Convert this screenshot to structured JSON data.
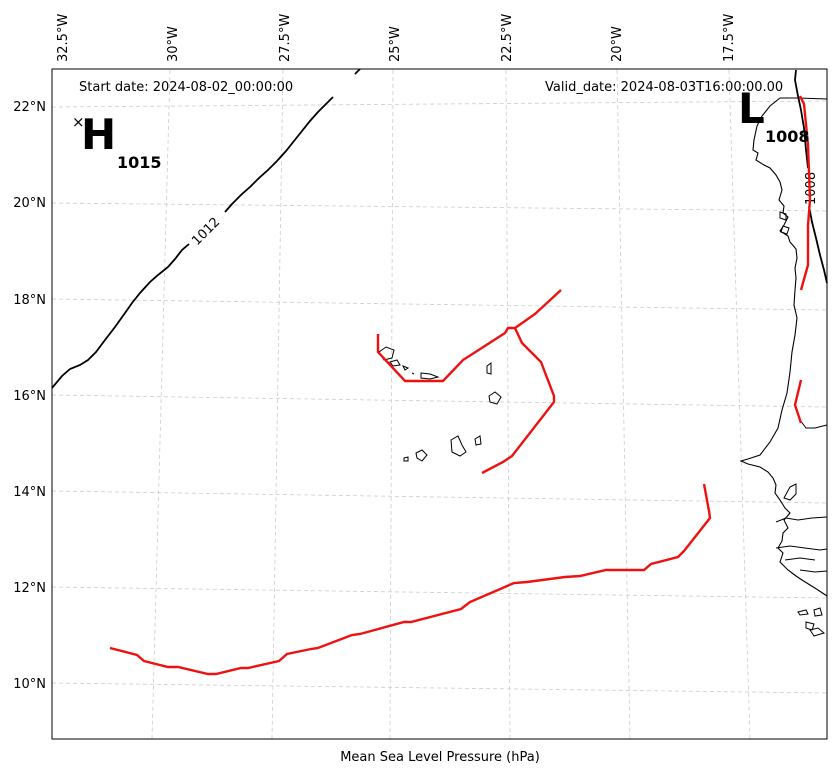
{
  "map": {
    "start_date": "Start date: 2024-08-02_00:00:00",
    "valid_date": "Valid_date: 2024-08-03T16:00:00.00",
    "xlabel": "Mean Sea Level Pressure (hPa)",
    "lon_ticks": [
      "32.5°W",
      "30°W",
      "27.5°W",
      "25°W",
      "22.5°W",
      "20°W",
      "17.5°W"
    ],
    "lat_ticks": [
      "22°N",
      "20°N",
      "18°N",
      "16°N",
      "14°N",
      "12°N",
      "10°N"
    ],
    "high": {
      "letter": "H",
      "marker": "×",
      "value": "1015"
    },
    "low": {
      "letter": "L",
      "value": "1008"
    },
    "contour_labels": {
      "isobar_1012": "1012",
      "isobar_1008": "1008"
    },
    "colors": {
      "isobar": "#000000",
      "fronts": "#ee1111",
      "grid": "#cccccc",
      "land": "#000000"
    }
  }
}
